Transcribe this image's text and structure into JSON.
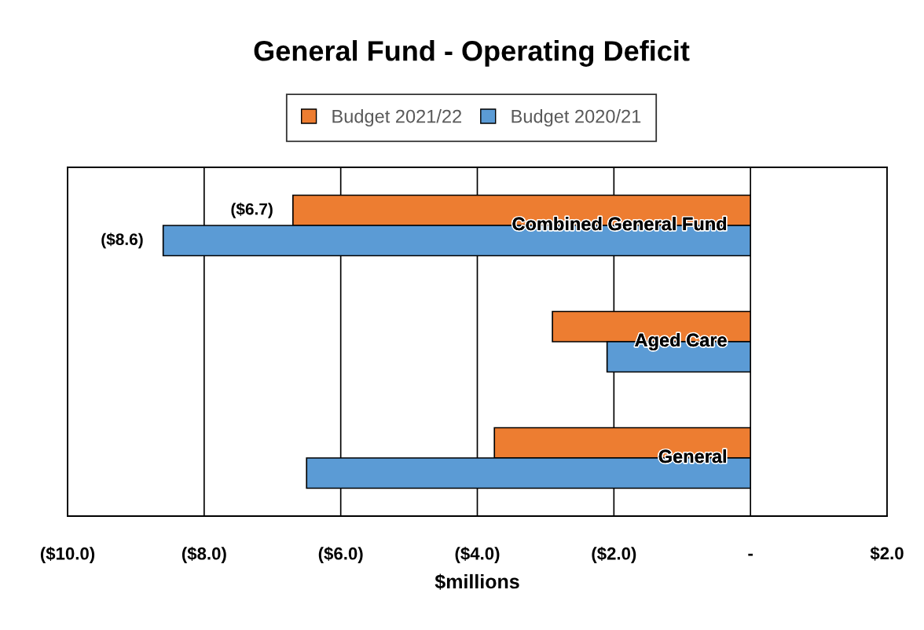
{
  "chart_data": {
    "type": "bar",
    "orientation": "horizontal",
    "title": "General Fund - Operating Deficit",
    "xlabel": "$millions",
    "categories": [
      "Combined General Fund",
      "Aged Care",
      "General"
    ],
    "series": [
      {
        "name": "Budget 2021/22",
        "color": "#ed7d31",
        "values": [
          -6.7,
          -2.9,
          -3.75
        ],
        "value_labels": [
          "($6.7)",
          null,
          null
        ]
      },
      {
        "name": "Budget 2020/21",
        "color": "#5b9bd5",
        "values": [
          -8.6,
          -2.1,
          -6.5
        ],
        "value_labels": [
          "($8.6)",
          null,
          null
        ]
      }
    ],
    "xlim": [
      -10,
      2
    ],
    "xticks": [
      {
        "value": -10,
        "label": "($10.0)"
      },
      {
        "value": -8,
        "label": "($8.0)"
      },
      {
        "value": -6,
        "label": "($6.0)"
      },
      {
        "value": -4,
        "label": "($4.0)"
      },
      {
        "value": -2,
        "label": "($2.0)"
      },
      {
        "value": 0,
        "label": "-"
      },
      {
        "value": 2,
        "label": "$2.0"
      }
    ],
    "grid": "x",
    "legend": "top"
  }
}
